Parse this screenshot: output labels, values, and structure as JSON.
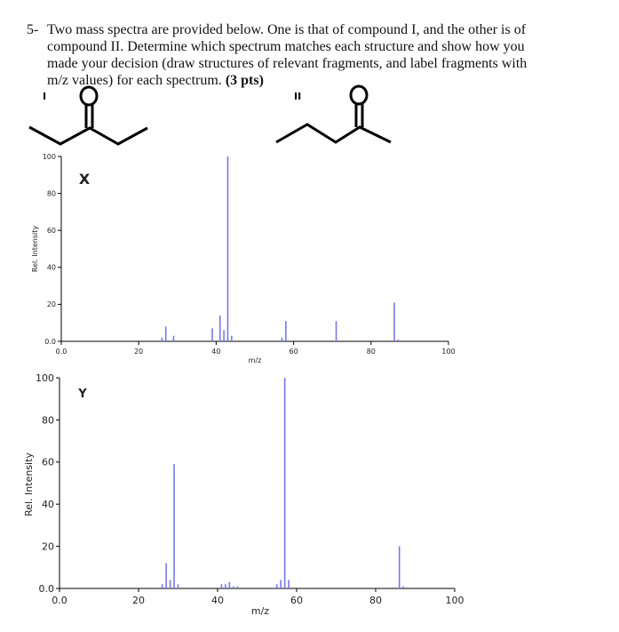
{
  "question": {
    "number": "5-",
    "lines": [
      "Two mass spectra are provided below. One is that of compound I, and the other is of",
      "compound II. Determine which spectrum matches each structure and show how you",
      "made your decision (draw structures of relevant fragments, and label fragments with",
      "m/z values) for each spectrum."
    ],
    "points": "(3 pts)",
    "structure_labels": [
      "I",
      "II"
    ]
  },
  "chart_data": [
    {
      "type": "bar",
      "label": "X",
      "xlabel": "m/z",
      "ylabel": "Rel. Intensity",
      "color": "#7878e8",
      "x": [
        26,
        27,
        29,
        39,
        41,
        42,
        43,
        44,
        57,
        58,
        71,
        86,
        87
      ],
      "values": [
        2,
        8,
        3,
        7,
        14,
        6,
        100,
        3,
        2,
        11,
        11,
        21,
        1
      ],
      "xlim": [
        0,
        100
      ],
      "ylim": [
        0,
        100
      ],
      "xticks": [
        {
          "value": 0,
          "label": "0.0"
        },
        20,
        40,
        60,
        80,
        100
      ],
      "yticks": [
        {
          "value": 0,
          "label": "0.0"
        },
        20,
        40,
        60,
        80,
        100
      ]
    },
    {
      "type": "bar",
      "label": "Y",
      "xlabel": "m/z",
      "ylabel": "Rel. Intensity",
      "color": "#7878e8",
      "x": [
        26,
        27,
        28,
        29,
        30,
        41,
        42,
        43,
        44,
        45,
        55,
        56,
        57,
        58,
        86,
        87
      ],
      "values": [
        2,
        12,
        4,
        59,
        2,
        2,
        2,
        3,
        1,
        1,
        2,
        4,
        100,
        4,
        20,
        1
      ],
      "xlim": [
        0,
        100
      ],
      "ylim": [
        0,
        100
      ],
      "xticks": [
        {
          "value": 0,
          "label": "0.0"
        },
        20,
        40,
        60,
        80,
        100
      ],
      "yticks": [
        {
          "value": 0,
          "label": "0.0"
        },
        20,
        40,
        60,
        80,
        100
      ]
    }
  ]
}
